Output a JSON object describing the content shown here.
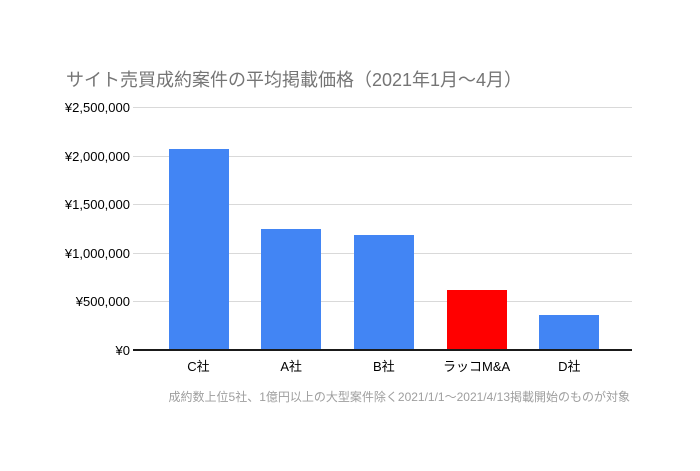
{
  "chart": {
    "title": "サイト売買成約案件の平均掲載価格（2021年1月〜4月）",
    "footnote": "成約数上位5社、1億円以上の大型案件除く2021/1/1〜2021/4/13掲載開始のものが対象"
  },
  "chart_data": {
    "type": "bar",
    "title": "サイト売買成約案件の平均掲載価格（2021年1月〜4月）",
    "footnote": "成約数上位5社、1億円以上の大型案件除く2021/1/1〜2021/4/13掲載開始のものが対象",
    "categories": [
      "C社",
      "A社",
      "B社",
      "ラッコM&A",
      "D社"
    ],
    "values": [
      2070000,
      1250000,
      1190000,
      620000,
      360000
    ],
    "bar_colors": [
      "#4285F4",
      "#4285F4",
      "#4285F4",
      "#FF0000",
      "#4285F4"
    ],
    "highlight_category": "ラッコM&A",
    "ytick_values": [
      0,
      500000,
      1000000,
      1500000,
      2000000,
      2500000
    ],
    "ytick_labels": [
      "¥0",
      "¥500,000",
      "¥1,000,000",
      "¥1,500,000",
      "¥2,000,000",
      "¥2,500,000"
    ],
    "ylim": [
      0,
      2500000
    ],
    "xlabel": "",
    "ylabel": "",
    "grid": true,
    "legend_position": "none",
    "colors": {
      "default_bar": "#4285F4",
      "highlight_bar": "#FF0000",
      "title_text": "#757575",
      "footnote_text": "#9e9e9e",
      "axis_label_text": "#000000",
      "gridline": "#d9d9d9",
      "axis_line": "#1a1a1a",
      "background": "#ffffff"
    }
  }
}
